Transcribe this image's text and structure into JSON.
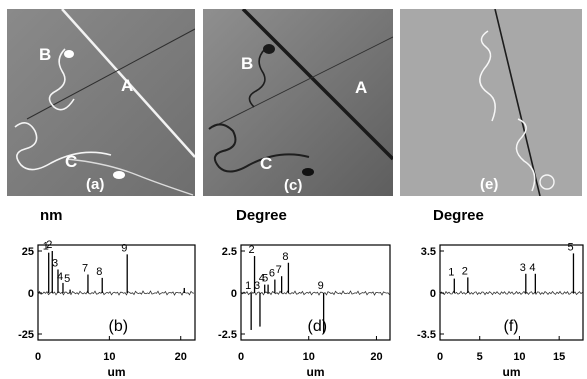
{
  "images": [
    {
      "id": "a",
      "label": "(a)",
      "line_labels": [
        "A",
        "B",
        "C"
      ]
    },
    {
      "id": "c",
      "label": "(c)",
      "line_labels": [
        "A",
        "B",
        "C"
      ]
    },
    {
      "id": "e",
      "label": "(e)"
    }
  ],
  "profiles": [
    {
      "id": "b",
      "unit": "nm",
      "ticks_y": [
        "25",
        "0",
        "-25"
      ],
      "ticks_x": [
        "0",
        "10",
        "20"
      ],
      "xlabel": "um",
      "panel_label": "(b)",
      "peaks": [
        "1",
        "2",
        "3",
        "4",
        "5",
        "7",
        "8",
        "9"
      ]
    },
    {
      "id": "d",
      "unit": "Degree",
      "ticks_y": [
        "2.5",
        "0",
        "-2.5"
      ],
      "ticks_x": [
        "0",
        "10",
        "20"
      ],
      "xlabel": "um",
      "panel_label": "(d)",
      "peaks": [
        "1",
        "2",
        "3",
        "4",
        "5",
        "6",
        "7",
        "8",
        "9"
      ]
    },
    {
      "id": "f",
      "unit": "Degree",
      "ticks_y": [
        "3.5",
        "0",
        "-3.5"
      ],
      "ticks_x": [
        "0",
        "5",
        "10",
        "15"
      ],
      "xlabel": "um",
      "panel_label": "(f)",
      "peaks": [
        "1",
        "2",
        "3",
        "4",
        "5"
      ]
    }
  ],
  "chart_data": [
    {
      "type": "line",
      "panel": "(b)",
      "ylabel": "nm",
      "xlabel": "um",
      "xlim": [
        0,
        22
      ],
      "ylim": [
        -25,
        25
      ],
      "x": [
        1.5,
        2.0,
        2.8,
        3.5,
        4.5,
        7.0,
        9.0,
        12.5,
        20.5
      ],
      "values": [
        24,
        25,
        14,
        6,
        2,
        11,
        9,
        23,
        3
      ]
    },
    {
      "type": "line",
      "panel": "(d)",
      "ylabel": "Degree",
      "xlabel": "um",
      "xlim": [
        0,
        22
      ],
      "ylim": [
        -2.5,
        2.5
      ],
      "x": [
        1.5,
        2.0,
        2.8,
        3.5,
        4.0,
        5.0,
        6.0,
        7.0,
        12.2
      ],
      "values": [
        -2.2,
        2.2,
        -2.0,
        0.5,
        0.5,
        0.8,
        1.0,
        1.8,
        -2.4
      ]
    },
    {
      "type": "line",
      "panel": "(f)",
      "ylabel": "Degree",
      "xlabel": "um",
      "xlim": [
        0,
        18
      ],
      "ylim": [
        -3.5,
        3.5
      ],
      "x": [
        1.8,
        3.5,
        10.8,
        12.0,
        16.8
      ],
      "values": [
        1.2,
        1.3,
        1.6,
        1.6,
        3.3
      ]
    }
  ]
}
